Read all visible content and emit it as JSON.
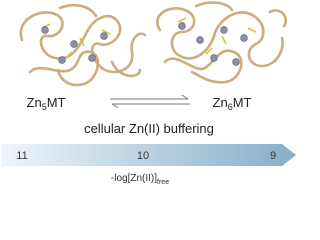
{
  "left_label": {
    "base": "Zn",
    "subscript": "5",
    "rest": "MT"
  },
  "right_label": {
    "base": "Zn",
    "subscript": "6",
    "rest": "MT"
  },
  "caption": "cellular Zn(II) buffering",
  "scale": {
    "ticks": [
      "11",
      "10",
      "9"
    ],
    "label": {
      "base": "-log[Zn(II)]",
      "subscript": "free"
    }
  }
}
